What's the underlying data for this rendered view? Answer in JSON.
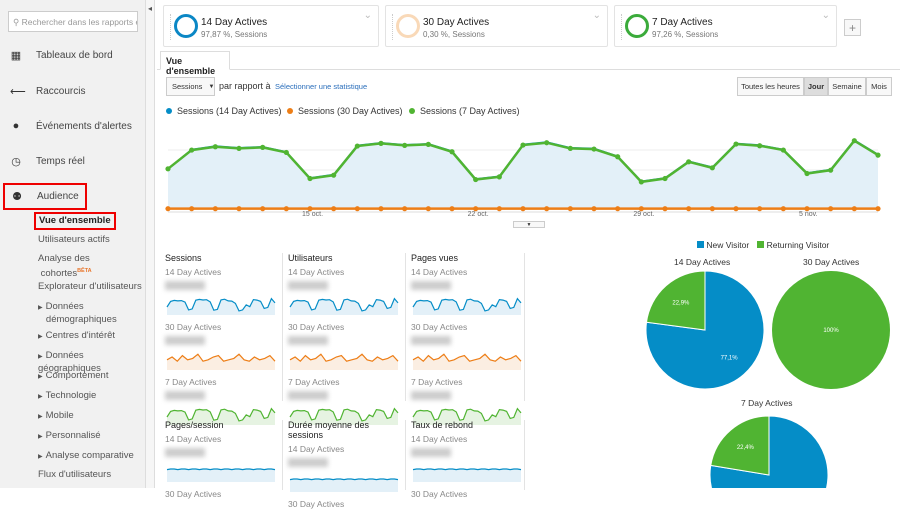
{
  "sidebar": {
    "search_placeholder": "Rechercher dans les rapports et l",
    "items": [
      {
        "label": "Tableaux de bord",
        "icon": "grid-icon"
      },
      {
        "label": "Raccourcis",
        "icon": "shortcut-arrow-icon"
      },
      {
        "label": "Événements d'alertes",
        "icon": "lightbulb-icon"
      },
      {
        "label": "Temps réel",
        "icon": "clock-icon"
      },
      {
        "label": "Audience",
        "icon": "people-icon"
      }
    ],
    "audience_sub": {
      "overview": "Vue d'ensemble",
      "active_users": "Utilisateurs actifs",
      "cohort_1": "Analyse des",
      "cohort_2": "cohortes",
      "beta": "BÊTA",
      "user_explorer": "Explorateur d'utilisateurs",
      "demo_1": "Données",
      "demo_2": "démographiques",
      "interests": "Centres d'intérêt",
      "geo": "Données géographiques",
      "behavior": "Comportement",
      "technology": "Technologie",
      "mobile": "Mobile",
      "custom": "Personnalisé",
      "benchmark": "Analyse comparative",
      "users_flow": "Flux d'utilisateurs"
    }
  },
  "segments": [
    {
      "title": "14 Day Actives",
      "subtitle": "97,87 %, Sessions",
      "color": "#0b87c5"
    },
    {
      "title": "30 Day Actives",
      "subtitle": "0,30 %, Sessions",
      "color": "#f9d9b8"
    },
    {
      "title": "7 Day Actives",
      "subtitle": "97,26 %, Sessions",
      "color": "#3bab3b"
    }
  ],
  "add_segment": "+",
  "tab": "Vue d'ensemble",
  "controls": {
    "metric": "Sessions",
    "compare": "par rapport à",
    "select_metric": "Sélectionner une statistique",
    "periods": [
      "Toutes les heures",
      "Jour",
      "Semaine",
      "Mois"
    ],
    "active_period": "Jour"
  },
  "chart_data": [
    {
      "type": "line",
      "title": "",
      "series": [
        {
          "name": "Sessions (14 Day Actives)",
          "color": "#058dc7",
          "values": [
            120,
            178,
            188,
            183,
            186,
            171,
            93,
            103,
            190,
            198,
            192,
            195,
            173,
            90,
            98,
            193,
            200,
            183,
            181,
            158,
            83,
            93,
            143,
            125,
            196,
            191,
            178,
            108,
            118,
            206,
            163
          ]
        },
        {
          "name": "Sessions (30 Day Actives)",
          "color": "#ed7e17",
          "values": [
            1,
            1,
            1,
            1,
            1,
            1,
            1,
            1,
            1,
            1,
            1,
            1,
            1,
            1,
            1,
            1,
            1,
            1,
            1,
            1,
            1,
            1,
            1,
            1,
            1,
            1,
            1,
            1,
            1,
            1,
            1
          ]
        },
        {
          "name": "Sessions (7 Day Actives)",
          "color": "#50b432",
          "values": [
            120,
            176,
            186,
            181,
            184,
            169,
            91,
            101,
            188,
            196,
            190,
            193,
            171,
            88,
            96,
            191,
            198,
            181,
            179,
            156,
            81,
            91,
            141,
            123,
            194,
            189,
            176,
            106,
            116,
            204,
            161
          ]
        }
      ],
      "x_ticks": [
        {
          "index": 6,
          "label": "15 oct."
        },
        {
          "index": 13,
          "label": "22 oct."
        },
        {
          "index": 20,
          "label": "29 oct."
        },
        {
          "index": 27,
          "label": "5 nov."
        }
      ],
      "ylim": [
        0,
        230
      ]
    },
    {
      "type": "pie",
      "title": "14 Day Actives",
      "legend": [
        "New Visitor",
        "Returning Visitor"
      ],
      "categories": [
        "New Visitor",
        "Returning Visitor"
      ],
      "values": [
        77.1,
        22.9
      ],
      "labels": [
        "77,1%",
        "22,9%"
      ]
    },
    {
      "type": "pie",
      "title": "30 Day Actives",
      "categories": [
        "New Visitor",
        "Returning Visitor"
      ],
      "values": [
        0,
        100
      ],
      "labels": [
        "",
        "100%"
      ]
    },
    {
      "type": "pie",
      "title": "7 Day Actives",
      "categories": [
        "New Visitor",
        "Returning Visitor"
      ],
      "values": [
        77.6,
        22.4
      ],
      "labels": [
        "",
        "22,4%"
      ]
    }
  ],
  "pie_colors": [
    "#058dc7",
    "#50b432"
  ],
  "metrics": [
    {
      "name": "Sessions"
    },
    {
      "name": "Utilisateurs"
    },
    {
      "name": "Pages vues"
    },
    {
      "name": "Pages/session"
    },
    {
      "name": "Durée moyenne des sessions"
    },
    {
      "name": "Taux de rebond"
    }
  ],
  "segment_names": [
    "14 Day Actives",
    "30 Day Actives",
    "7 Day Actives"
  ]
}
